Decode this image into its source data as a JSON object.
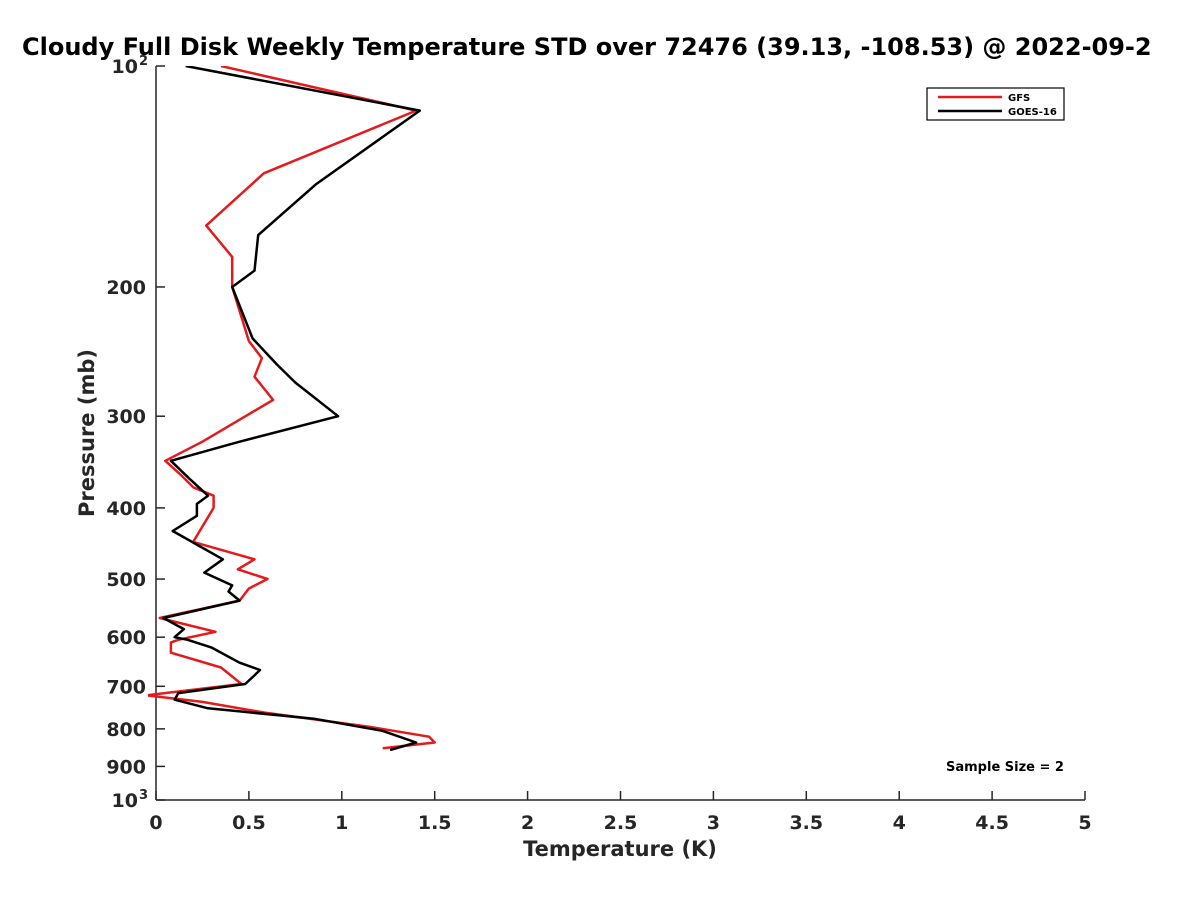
{
  "chart_data": {
    "type": "line",
    "title": "Cloudy Full Disk Weekly Temperature STD over 72476 (39.13, -108.53) @ 2022-09-2",
    "xlabel": "Temperature (K)",
    "ylabel": "Pressure (mb)",
    "xlim": [
      0,
      5
    ],
    "ylim": [
      100,
      1000
    ],
    "y_scale": "log",
    "y_reversed": true,
    "grid": false,
    "legend_position": "top-right",
    "x_ticks": [
      {
        "value": 0,
        "label": "0"
      },
      {
        "value": 0.5,
        "label": "0.5"
      },
      {
        "value": 1,
        "label": "1"
      },
      {
        "value": 1.5,
        "label": "1.5"
      },
      {
        "value": 2,
        "label": "2"
      },
      {
        "value": 2.5,
        "label": "2.5"
      },
      {
        "value": 3,
        "label": "3"
      },
      {
        "value": 3.5,
        "label": "3.5"
      },
      {
        "value": 4,
        "label": "4"
      },
      {
        "value": 4.5,
        "label": "4.5"
      },
      {
        "value": 5,
        "label": "5"
      }
    ],
    "y_ticks": [
      {
        "value": 100,
        "base": "10",
        "exp": "2"
      },
      {
        "value": 200,
        "base": "200",
        "exp": ""
      },
      {
        "value": 300,
        "base": "300",
        "exp": ""
      },
      {
        "value": 400,
        "base": "400",
        "exp": ""
      },
      {
        "value": 500,
        "base": "500",
        "exp": ""
      },
      {
        "value": 600,
        "base": "600",
        "exp": ""
      },
      {
        "value": 700,
        "base": "700",
        "exp": ""
      },
      {
        "value": 800,
        "base": "800",
        "exp": ""
      },
      {
        "value": 900,
        "base": "900",
        "exp": ""
      },
      {
        "value": 1000,
        "base": "10",
        "exp": "3"
      }
    ],
    "series": [
      {
        "name": "GFS",
        "color": "#e41a1c",
        "points": [
          [
            0.35,
            100
          ],
          [
            1.4,
            115
          ],
          [
            0.58,
            140
          ],
          [
            0.27,
            165
          ],
          [
            0.41,
            182
          ],
          [
            0.41,
            200
          ],
          [
            0.5,
            237
          ],
          [
            0.57,
            250
          ],
          [
            0.53,
            265
          ],
          [
            0.63,
            285
          ],
          [
            0.25,
            325
          ],
          [
            0.05,
            345
          ],
          [
            0.13,
            360
          ],
          [
            0.2,
            375
          ],
          [
            0.31,
            385
          ],
          [
            0.31,
            400
          ],
          [
            0.2,
            445
          ],
          [
            0.53,
            470
          ],
          [
            0.44,
            485
          ],
          [
            0.6,
            500
          ],
          [
            0.5,
            515
          ],
          [
            0.45,
            535
          ],
          [
            0.02,
            565
          ],
          [
            0.32,
            590
          ],
          [
            0.12,
            605
          ],
          [
            0.08,
            610
          ],
          [
            0.08,
            630
          ],
          [
            0.35,
            660
          ],
          [
            0.46,
            695
          ],
          [
            -0.05,
            720
          ],
          [
            0.25,
            735
          ],
          [
            0.58,
            760
          ],
          [
            1.15,
            795
          ],
          [
            1.47,
            820
          ],
          [
            1.5,
            835
          ],
          [
            1.22,
            850
          ]
        ]
      },
      {
        "name": "GOES-16",
        "color": "#000000",
        "points": [
          [
            0.16,
            100
          ],
          [
            1.42,
            115
          ],
          [
            0.86,
            145
          ],
          [
            0.55,
            170
          ],
          [
            0.53,
            190
          ],
          [
            0.41,
            200
          ],
          [
            0.52,
            235
          ],
          [
            0.65,
            255
          ],
          [
            0.75,
            270
          ],
          [
            0.98,
            300
          ],
          [
            0.45,
            325
          ],
          [
            0.08,
            345
          ],
          [
            0.18,
            365
          ],
          [
            0.28,
            385
          ],
          [
            0.22,
            395
          ],
          [
            0.22,
            410
          ],
          [
            0.09,
            430
          ],
          [
            0.36,
            470
          ],
          [
            0.26,
            490
          ],
          [
            0.41,
            510
          ],
          [
            0.39,
            520
          ],
          [
            0.45,
            535
          ],
          [
            0.04,
            565
          ],
          [
            0.15,
            585
          ],
          [
            0.1,
            600
          ],
          [
            0.17,
            605
          ],
          [
            0.3,
            620
          ],
          [
            0.45,
            650
          ],
          [
            0.56,
            665
          ],
          [
            0.52,
            680
          ],
          [
            0.48,
            695
          ],
          [
            0.12,
            715
          ],
          [
            0.1,
            730
          ],
          [
            0.28,
            750
          ],
          [
            0.85,
            775
          ],
          [
            1.22,
            805
          ],
          [
            1.4,
            835
          ],
          [
            1.26,
            855
          ]
        ]
      }
    ],
    "annotation": "Sample Size = 2"
  }
}
